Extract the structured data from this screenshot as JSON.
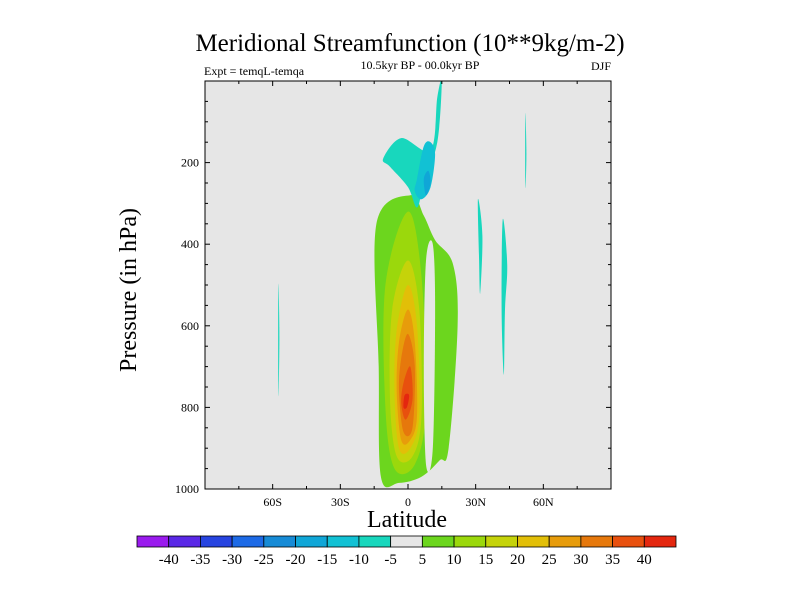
{
  "chart_data": {
    "type": "heatmap",
    "title": "Meridional Streamfunction (10**9kg/m-2)",
    "left_label": "Expt = temqL-temqa",
    "center_label": "10.5kyr BP - 00.0kyr BP",
    "right_label": "DJF",
    "xlabel": "Latitude",
    "ylabel": "Pressure (in hPa)",
    "xlim": [
      -90,
      90
    ],
    "ylim": [
      1000,
      0
    ],
    "x_ticks": [
      {
        "value": -60,
        "label": "60S"
      },
      {
        "value": -30,
        "label": "30S"
      },
      {
        "value": 0,
        "label": "0"
      },
      {
        "value": 30,
        "label": "30N"
      },
      {
        "value": 60,
        "label": "60N"
      }
    ],
    "y_ticks": [
      {
        "value": 200,
        "label": "200"
      },
      {
        "value": 400,
        "label": "400"
      },
      {
        "value": 600,
        "label": "600"
      },
      {
        "value": 800,
        "label": "800"
      },
      {
        "value": 1000,
        "label": "1000"
      }
    ],
    "background_color": "#e6e6e6",
    "colorbar": {
      "levels": [
        "-40",
        "-35",
        "-30",
        "-25",
        "-20",
        "-15",
        "-10",
        "-5",
        "5",
        "10",
        "15",
        "20",
        "25",
        "30",
        "35",
        "40"
      ],
      "colors": [
        "#9a1bee",
        "#5a28e6",
        "#2744e0",
        "#1d6ae6",
        "#178bd6",
        "#10a6d7",
        "#12c1d4",
        "#18d7bd",
        "#e6e6e6",
        "#6cd61e",
        "#9bd80c",
        "#c5d30a",
        "#e2bf08",
        "#e79c0b",
        "#e6780c",
        "#e8500e",
        "#e4270f"
      ]
    },
    "features": [
      {
        "name": "southern-filament",
        "lat": [
          -57.5,
          -57,
          -57.5
        ],
        "p": [
          500,
          630,
          770
        ],
        "value": -7
      },
      {
        "name": "positive-cell",
        "lat": [
          -14,
          1,
          7,
          12,
          20,
          22,
          18,
          14,
          6,
          -4,
          -12,
          -13
        ],
        "p": [
          350,
          280,
          330,
          390,
          450,
          600,
          900,
          930,
          970,
          985,
          970,
          700
        ],
        "value": 7
      },
      {
        "name": "cell-10",
        "lat": [
          -10,
          0,
          6,
          8,
          3,
          -6,
          -10
        ],
        "p": [
          500,
          320,
          480,
          800,
          940,
          950,
          800
        ],
        "value": 12
      },
      {
        "name": "cell-15",
        "lat": [
          -7,
          0,
          5,
          6,
          2,
          -5,
          -8
        ],
        "p": [
          560,
          440,
          560,
          820,
          920,
          920,
          780
        ],
        "value": 17
      },
      {
        "name": "cell-20",
        "lat": [
          -5,
          0,
          4,
          5,
          1,
          -4,
          -6
        ],
        "p": [
          610,
          500,
          600,
          820,
          900,
          900,
          760
        ],
        "value": 22
      },
      {
        "name": "cell-25",
        "lat": [
          -4,
          0,
          3,
          4,
          1,
          -3,
          -5
        ],
        "p": [
          640,
          560,
          640,
          820,
          880,
          880,
          760
        ],
        "value": 27
      },
      {
        "name": "cell-30",
        "lat": [
          -3,
          0,
          3,
          2,
          -2,
          -4
        ],
        "p": [
          680,
          620,
          700,
          850,
          860,
          760
        ],
        "value": 32
      },
      {
        "name": "cell-35",
        "lat": [
          -2,
          1,
          2,
          -1,
          -3
        ],
        "p": [
          740,
          700,
          780,
          830,
          790
        ],
        "value": 37
      },
      {
        "name": "cell-40",
        "lat": [
          -1.5,
          0.5,
          -0.5,
          -2
        ],
        "p": [
          770,
          770,
          800,
          800
        ],
        "value": 42
      },
      {
        "name": "gap-cell",
        "lat": [
          8,
          11,
          12,
          11,
          8,
          7
        ],
        "p": [
          440,
          400,
          560,
          900,
          940,
          700
        ],
        "value": 0
      },
      {
        "name": "upper-negative-cell",
        "lat": [
          -11,
          -3,
          10,
          13,
          15,
          13,
          7,
          4,
          0,
          -8
        ],
        "p": [
          190,
          140,
          170,
          40,
          0,
          150,
          250,
          310,
          260,
          210
        ],
        "value": -7
      },
      {
        "name": "upper-negative-core",
        "lat": [
          4,
          7,
          10,
          12,
          10,
          6,
          3
        ],
        "p": [
          240,
          160,
          150,
          180,
          260,
          290,
          270
        ],
        "value": -12
      },
      {
        "name": "upper-negative-center",
        "lat": [
          7,
          9,
          10,
          8
        ],
        "p": [
          240,
          220,
          250,
          280
        ],
        "value": -17
      },
      {
        "name": "mid-filament",
        "lat": [
          31,
          33,
          32,
          31.5
        ],
        "p": [
          290,
          380,
          520,
          440
        ],
        "value": -7
      },
      {
        "name": "east-filament",
        "lat": [
          42,
          44,
          43,
          42.5,
          41.5
        ],
        "p": [
          340,
          450,
          560,
          720,
          560
        ],
        "value": -7
      },
      {
        "name": "northern-filament",
        "lat": [
          52,
          52.5,
          52
        ],
        "p": [
          80,
          180,
          260
        ],
        "value": -7
      }
    ]
  }
}
